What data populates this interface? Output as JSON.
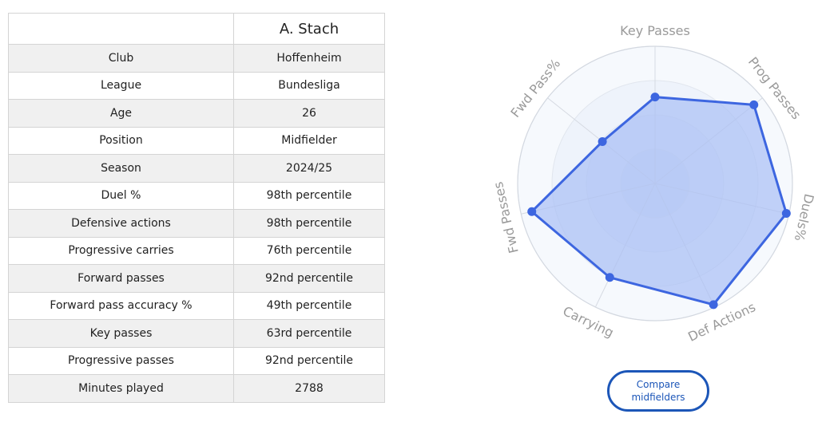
{
  "player": {
    "name": "A. Stach"
  },
  "rows": [
    {
      "label": "Club",
      "value": "Hoffenheim",
      "style": "link"
    },
    {
      "label": "League",
      "value": "Bundesliga",
      "style": "plain"
    },
    {
      "label": "Age",
      "value": "26",
      "style": "plain"
    },
    {
      "label": "Position",
      "value": "Midfielder",
      "style": "link"
    },
    {
      "label": "Season",
      "value": "2024/25",
      "style": "plain"
    },
    {
      "label": "Duel %",
      "value": "98th percentile",
      "style": "green"
    },
    {
      "label": "Defensive actions",
      "value": "98th percentile",
      "style": "green"
    },
    {
      "label": "Progressive carries",
      "value": "76th percentile",
      "style": "green"
    },
    {
      "label": "Forward passes",
      "value": "92nd percentile",
      "style": "green"
    },
    {
      "label": "Forward pass accuracy %",
      "value": "49th percentile",
      "style": "blue"
    },
    {
      "label": "Key passes",
      "value": "63rd percentile",
      "style": "blue"
    },
    {
      "label": "Progressive passes",
      "value": "92nd percentile",
      "style": "green"
    },
    {
      "label": "Minutes played",
      "value": "2788",
      "style": "plain"
    }
  ],
  "compare_button": {
    "label": "Compare midfielders"
  },
  "colors": {
    "link": "#1f1fd6",
    "green": "#2f8c2a",
    "blue": "#3d6fd6",
    "radar_line": "#3d66e0",
    "radar_fill": "#a9bff5",
    "button": "#1c56b8"
  },
  "chart_data": {
    "type": "radar",
    "axes": [
      "Key Passes",
      "Prog Passes",
      "Duels%",
      "Def Actions",
      "Carrying",
      "Fwd Passes",
      "Fwd Pass%"
    ],
    "values": [
      63,
      92,
      98,
      98,
      76,
      92,
      49
    ],
    "range": [
      0,
      100
    ],
    "rings": 4
  }
}
